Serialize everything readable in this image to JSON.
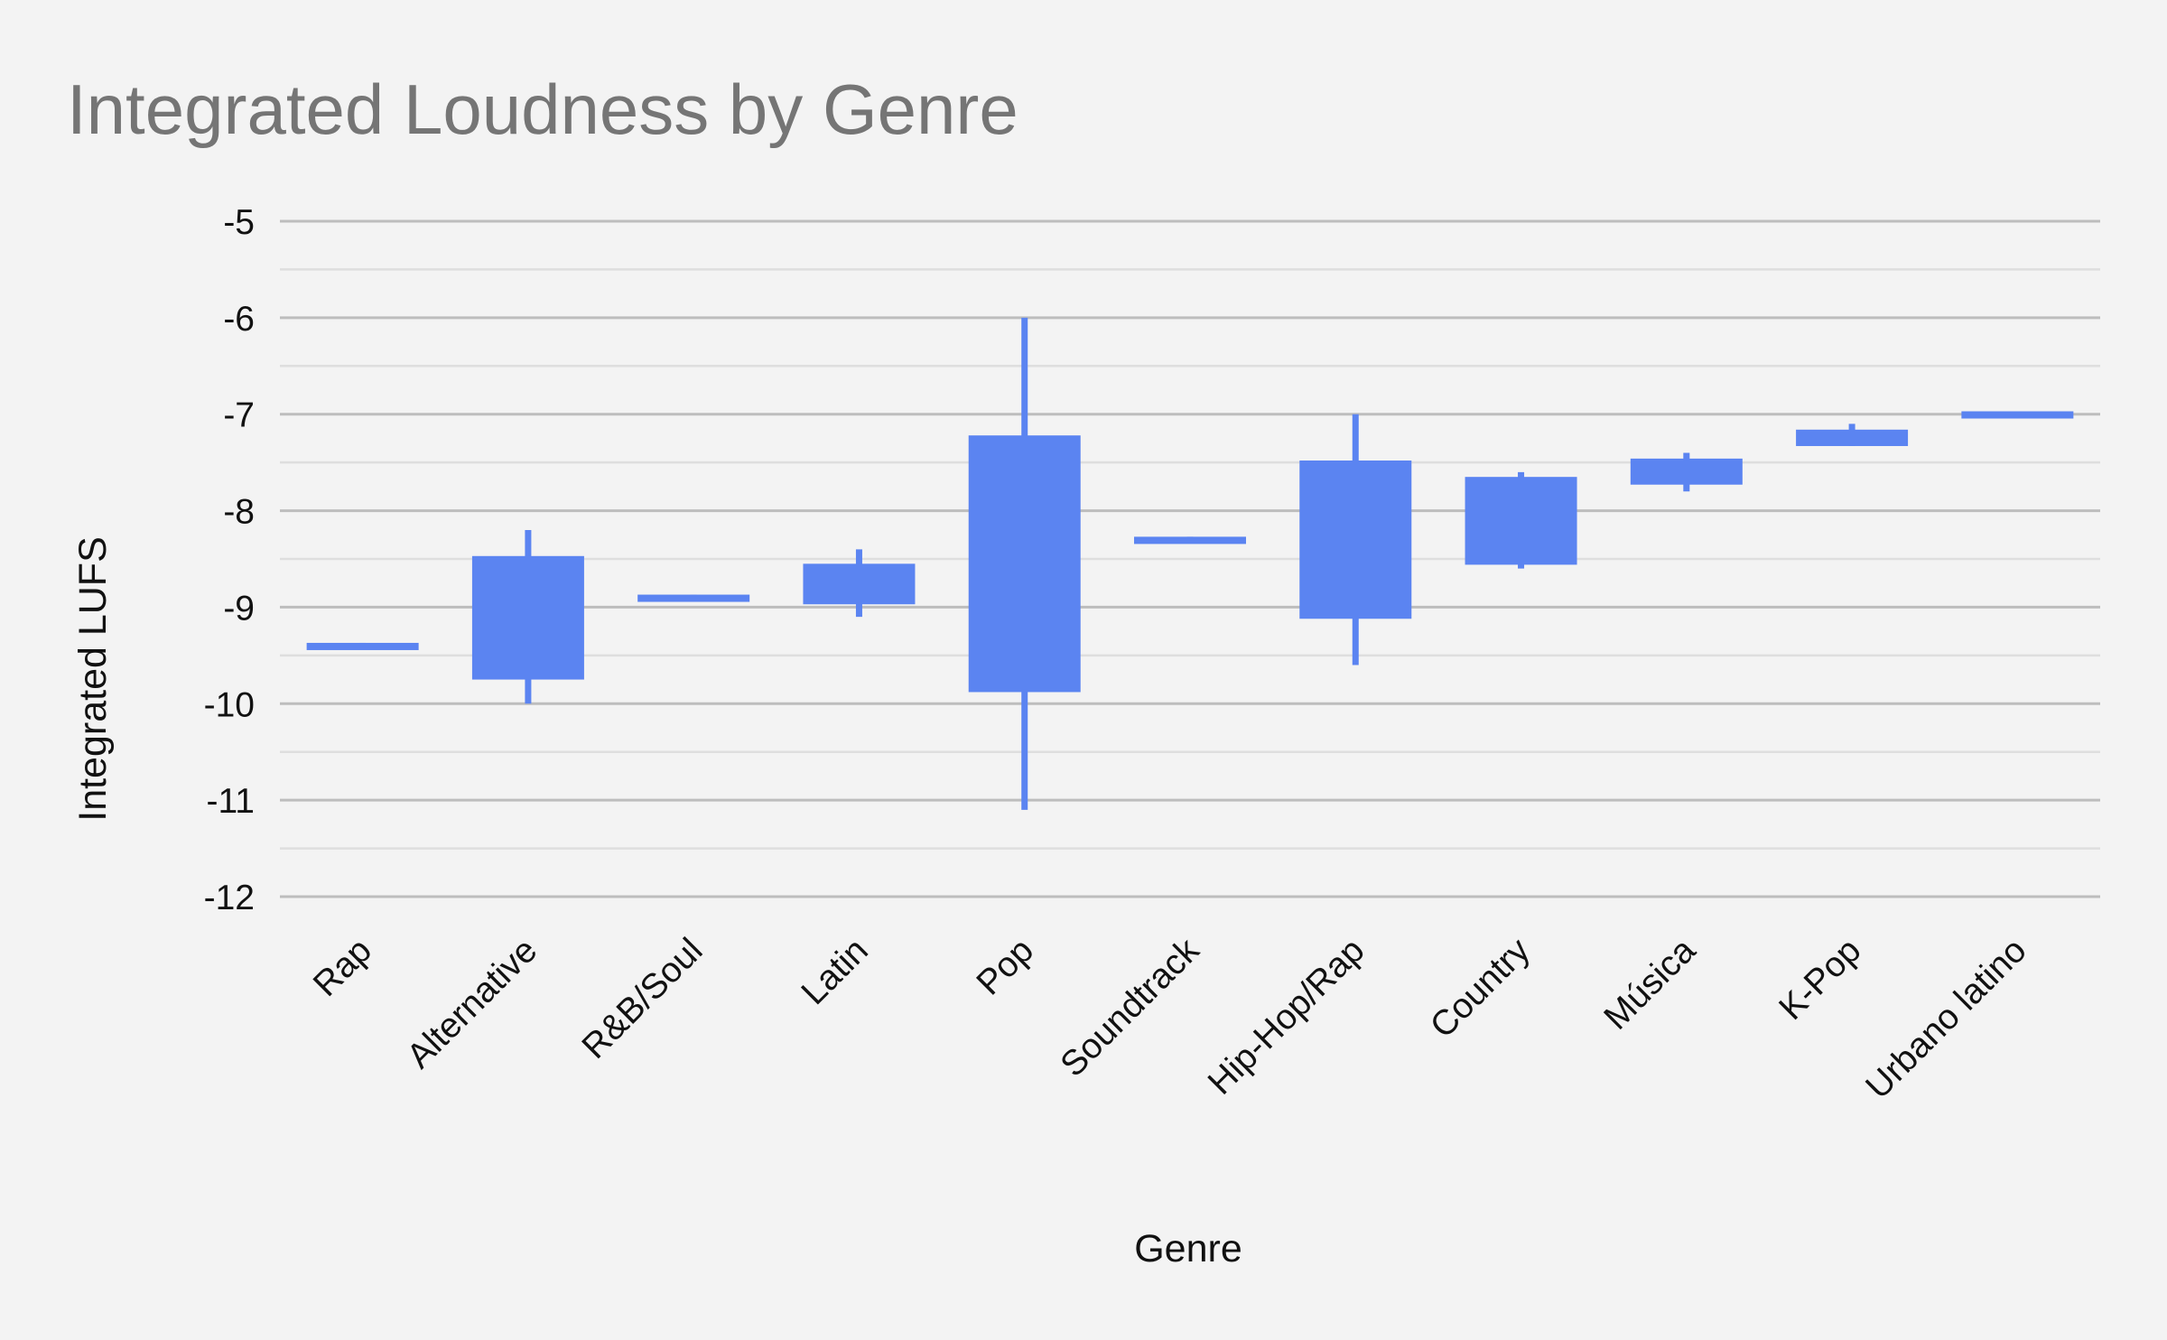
{
  "chart_data": {
    "type": "candlestick",
    "title": "Integrated Loudness by Genre",
    "xlabel": "Genre",
    "ylabel": "Integrated LUFS",
    "ylim": [
      -12,
      -5
    ],
    "yticks": [
      -5,
      -6,
      -7,
      -8,
      -9,
      -10,
      -11,
      -12
    ],
    "grid": true,
    "minor_grid": true,
    "legend": "none",
    "colors": {
      "series": "#5b84f1",
      "background": "#f3f3f3",
      "title": "#757575",
      "grid_major": "#bdbdbd",
      "grid_minor": "#dedede"
    },
    "categories": [
      "Rap",
      "Alternative",
      "R&B/Soul",
      "Latin",
      "Pop",
      "Soundtrack",
      "Hip-Hop/Rap",
      "Country",
      "Música",
      "K-Pop",
      "Urbano latino"
    ],
    "series": [
      {
        "low": [
          -9.43,
          -10.0,
          -8.93,
          -9.1,
          -11.1,
          -8.33,
          -9.6,
          -8.6,
          -7.8,
          -7.33,
          -7.03
        ],
        "open": [
          -9.43,
          -9.75,
          -8.93,
          -8.97,
          -9.88,
          -8.33,
          -9.12,
          -8.56,
          -7.73,
          -7.33,
          -7.03
        ],
        "close": [
          -9.37,
          -8.47,
          -8.87,
          -8.55,
          -7.22,
          -8.27,
          -7.48,
          -7.65,
          -7.46,
          -7.16,
          -6.97
        ],
        "high": [
          -9.37,
          -8.2,
          -8.87,
          -8.4,
          -6.0,
          -8.27,
          -7.0,
          -7.6,
          -7.4,
          -7.1,
          -6.97
        ]
      }
    ]
  }
}
